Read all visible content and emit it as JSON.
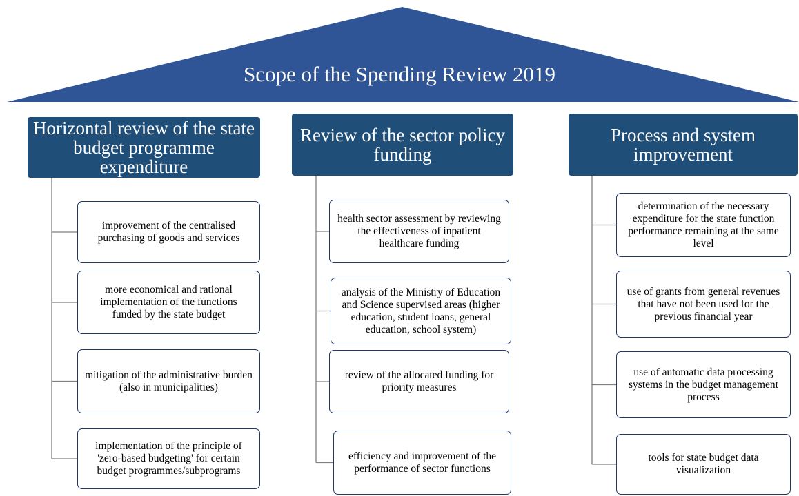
{
  "title": "Scope of the Spending Review 2019",
  "columns": [
    {
      "heading": "Horizontal review of the state budget programme expenditure",
      "items": [
        "improvement of the centralised purchasing of goods and services",
        "more economical and rational implementation of the functions funded by the state budget",
        "mitigation of the administrative burden (also in municipalities)",
        "implementation of the principle of 'zero-based budgeting' for certain budget programmes/subprograms"
      ]
    },
    {
      "heading": "Review of the sector policy funding",
      "items": [
        "health sector assessment by reviewing the effectiveness of inpatient healthcare funding",
        "analysis of the Ministry of Education and Science supervised areas (higher education, student loans, general education, school system)",
        "review of the allocated funding for priority measures",
        "efficiency and improvement of the performance of sector functions"
      ]
    },
    {
      "heading": "Process and system improvement",
      "items": [
        "determination of the necessary expenditure for the state function performance remaining at the same level",
        "use of grants from general revenues that have not been used for the previous financial year",
        "use of automatic data processing systems in the budget management process",
        "tools for state budget data visualization"
      ]
    }
  ]
}
